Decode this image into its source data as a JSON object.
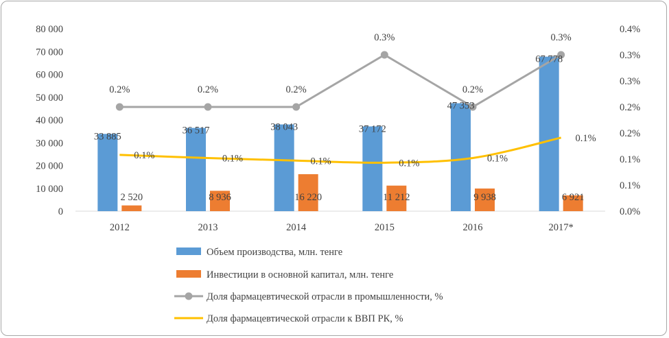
{
  "chart_data": {
    "type": "bar",
    "categories": [
      "2012",
      "2013",
      "2014",
      "2015",
      "2016",
      "2017*"
    ],
    "series": [
      {
        "name": "Объем производства, млн. тенге",
        "kind": "bar",
        "axis": "left",
        "color": "#5b9bd5",
        "values": [
          33885,
          36517,
          38043,
          37172,
          47353,
          67778
        ],
        "labels": [
          "33 885",
          "36 517",
          "38 043",
          "37 172",
          "47 353",
          "67 778"
        ]
      },
      {
        "name": "Инвестиции в основной капитал, млн. тенге",
        "kind": "bar",
        "axis": "left",
        "color": "#ed7d31",
        "values": [
          2520,
          8936,
          16220,
          11212,
          9938,
          6921
        ],
        "labels": [
          "2 520",
          "8 936",
          "16 220",
          "11 212",
          "9 938",
          "6 921"
        ]
      },
      {
        "name": "Доля фармацевтической отрасли в промышленности, %",
        "kind": "line",
        "marker": "circle",
        "axis": "right",
        "color": "#a5a5a5",
        "values": [
          0.2,
          0.2,
          0.2,
          0.3,
          0.2,
          0.3
        ],
        "labels": [
          "0.2%",
          "0.2%",
          "0.2%",
          "0.3%",
          "0.2%",
          "0.3%"
        ]
      },
      {
        "name": "Доля фармацевтической отрасли к ВВП РК, %",
        "kind": "line",
        "smooth": true,
        "axis": "right",
        "color": "#ffc000",
        "values": [
          0.108,
          0.102,
          0.097,
          0.093,
          0.102,
          0.141
        ],
        "labels": [
          "0.1%",
          "0.1%",
          "0.1%",
          "0.1%",
          "0.1%",
          "0.1%"
        ]
      }
    ],
    "y_left": {
      "min": 0,
      "max": 80000,
      "ticks": [
        "0",
        "10 000",
        "20 000",
        "30 000",
        "40 000",
        "50 000",
        "60 000",
        "70 000",
        "80 000"
      ]
    },
    "y_right": {
      "min": 0,
      "max": 0.35,
      "ticks": [
        "0.0%",
        "0.1%",
        "0.1%",
        "0.2%",
        "0.2%",
        "0.3%",
        "0.3%",
        "0.4%"
      ]
    },
    "grid": false,
    "legend_position": "bottom"
  }
}
